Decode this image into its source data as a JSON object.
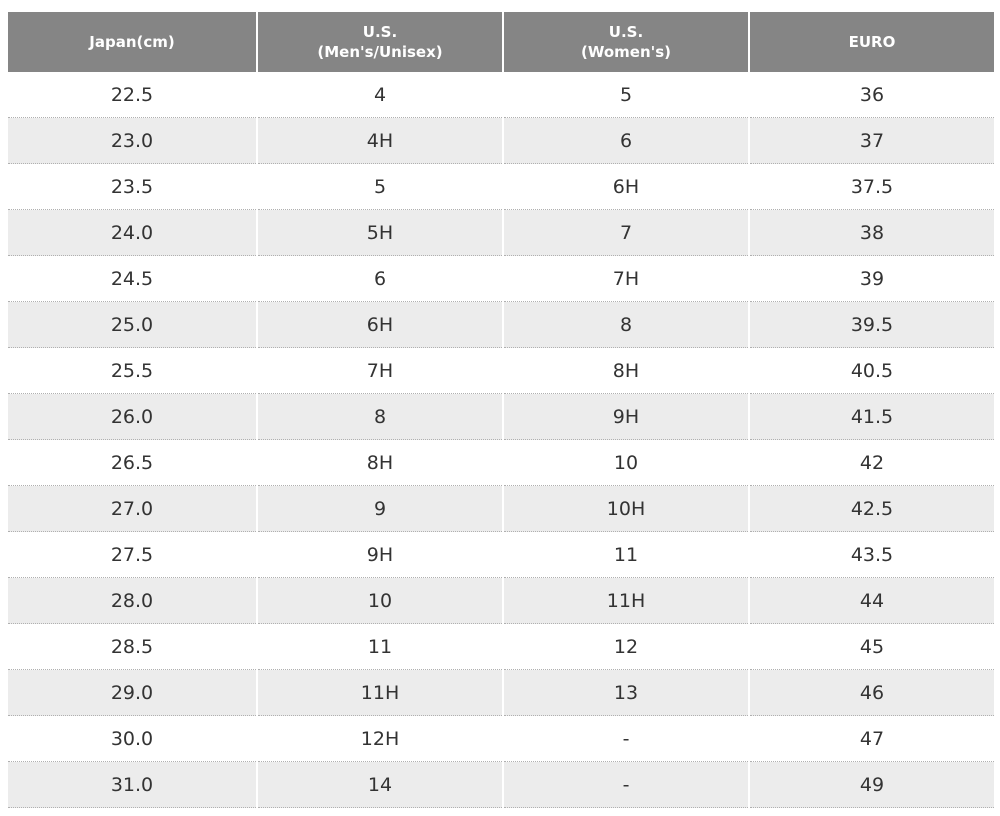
{
  "table": {
    "header": [
      [
        "Japan(cm)"
      ],
      [
        "U.S.",
        "(Men's/Unisex)"
      ],
      [
        "U.S.",
        "(Women's)"
      ],
      [
        "EURO"
      ]
    ],
    "rows": [
      [
        "22.5",
        "4",
        "5",
        "36"
      ],
      [
        "23.0",
        "4H",
        "6",
        "37"
      ],
      [
        "23.5",
        "5",
        "6H",
        "37.5"
      ],
      [
        "24.0",
        "5H",
        "7",
        "38"
      ],
      [
        "24.5",
        "6",
        "7H",
        "39"
      ],
      [
        "25.0",
        "6H",
        "8",
        "39.5"
      ],
      [
        "25.5",
        "7H",
        "8H",
        "40.5"
      ],
      [
        "26.0",
        "8",
        "9H",
        "41.5"
      ],
      [
        "26.5",
        "8H",
        "10",
        "42"
      ],
      [
        "27.0",
        "9",
        "10H",
        "42.5"
      ],
      [
        "27.5",
        "9H",
        "11",
        "43.5"
      ],
      [
        "28.0",
        "10",
        "11H",
        "44"
      ],
      [
        "28.5",
        "11",
        "12",
        "45"
      ],
      [
        "29.0",
        "11H",
        "13",
        "46"
      ],
      [
        "30.0",
        "12H",
        "-",
        "47"
      ],
      [
        "31.0",
        "14",
        "-",
        "49"
      ]
    ]
  }
}
